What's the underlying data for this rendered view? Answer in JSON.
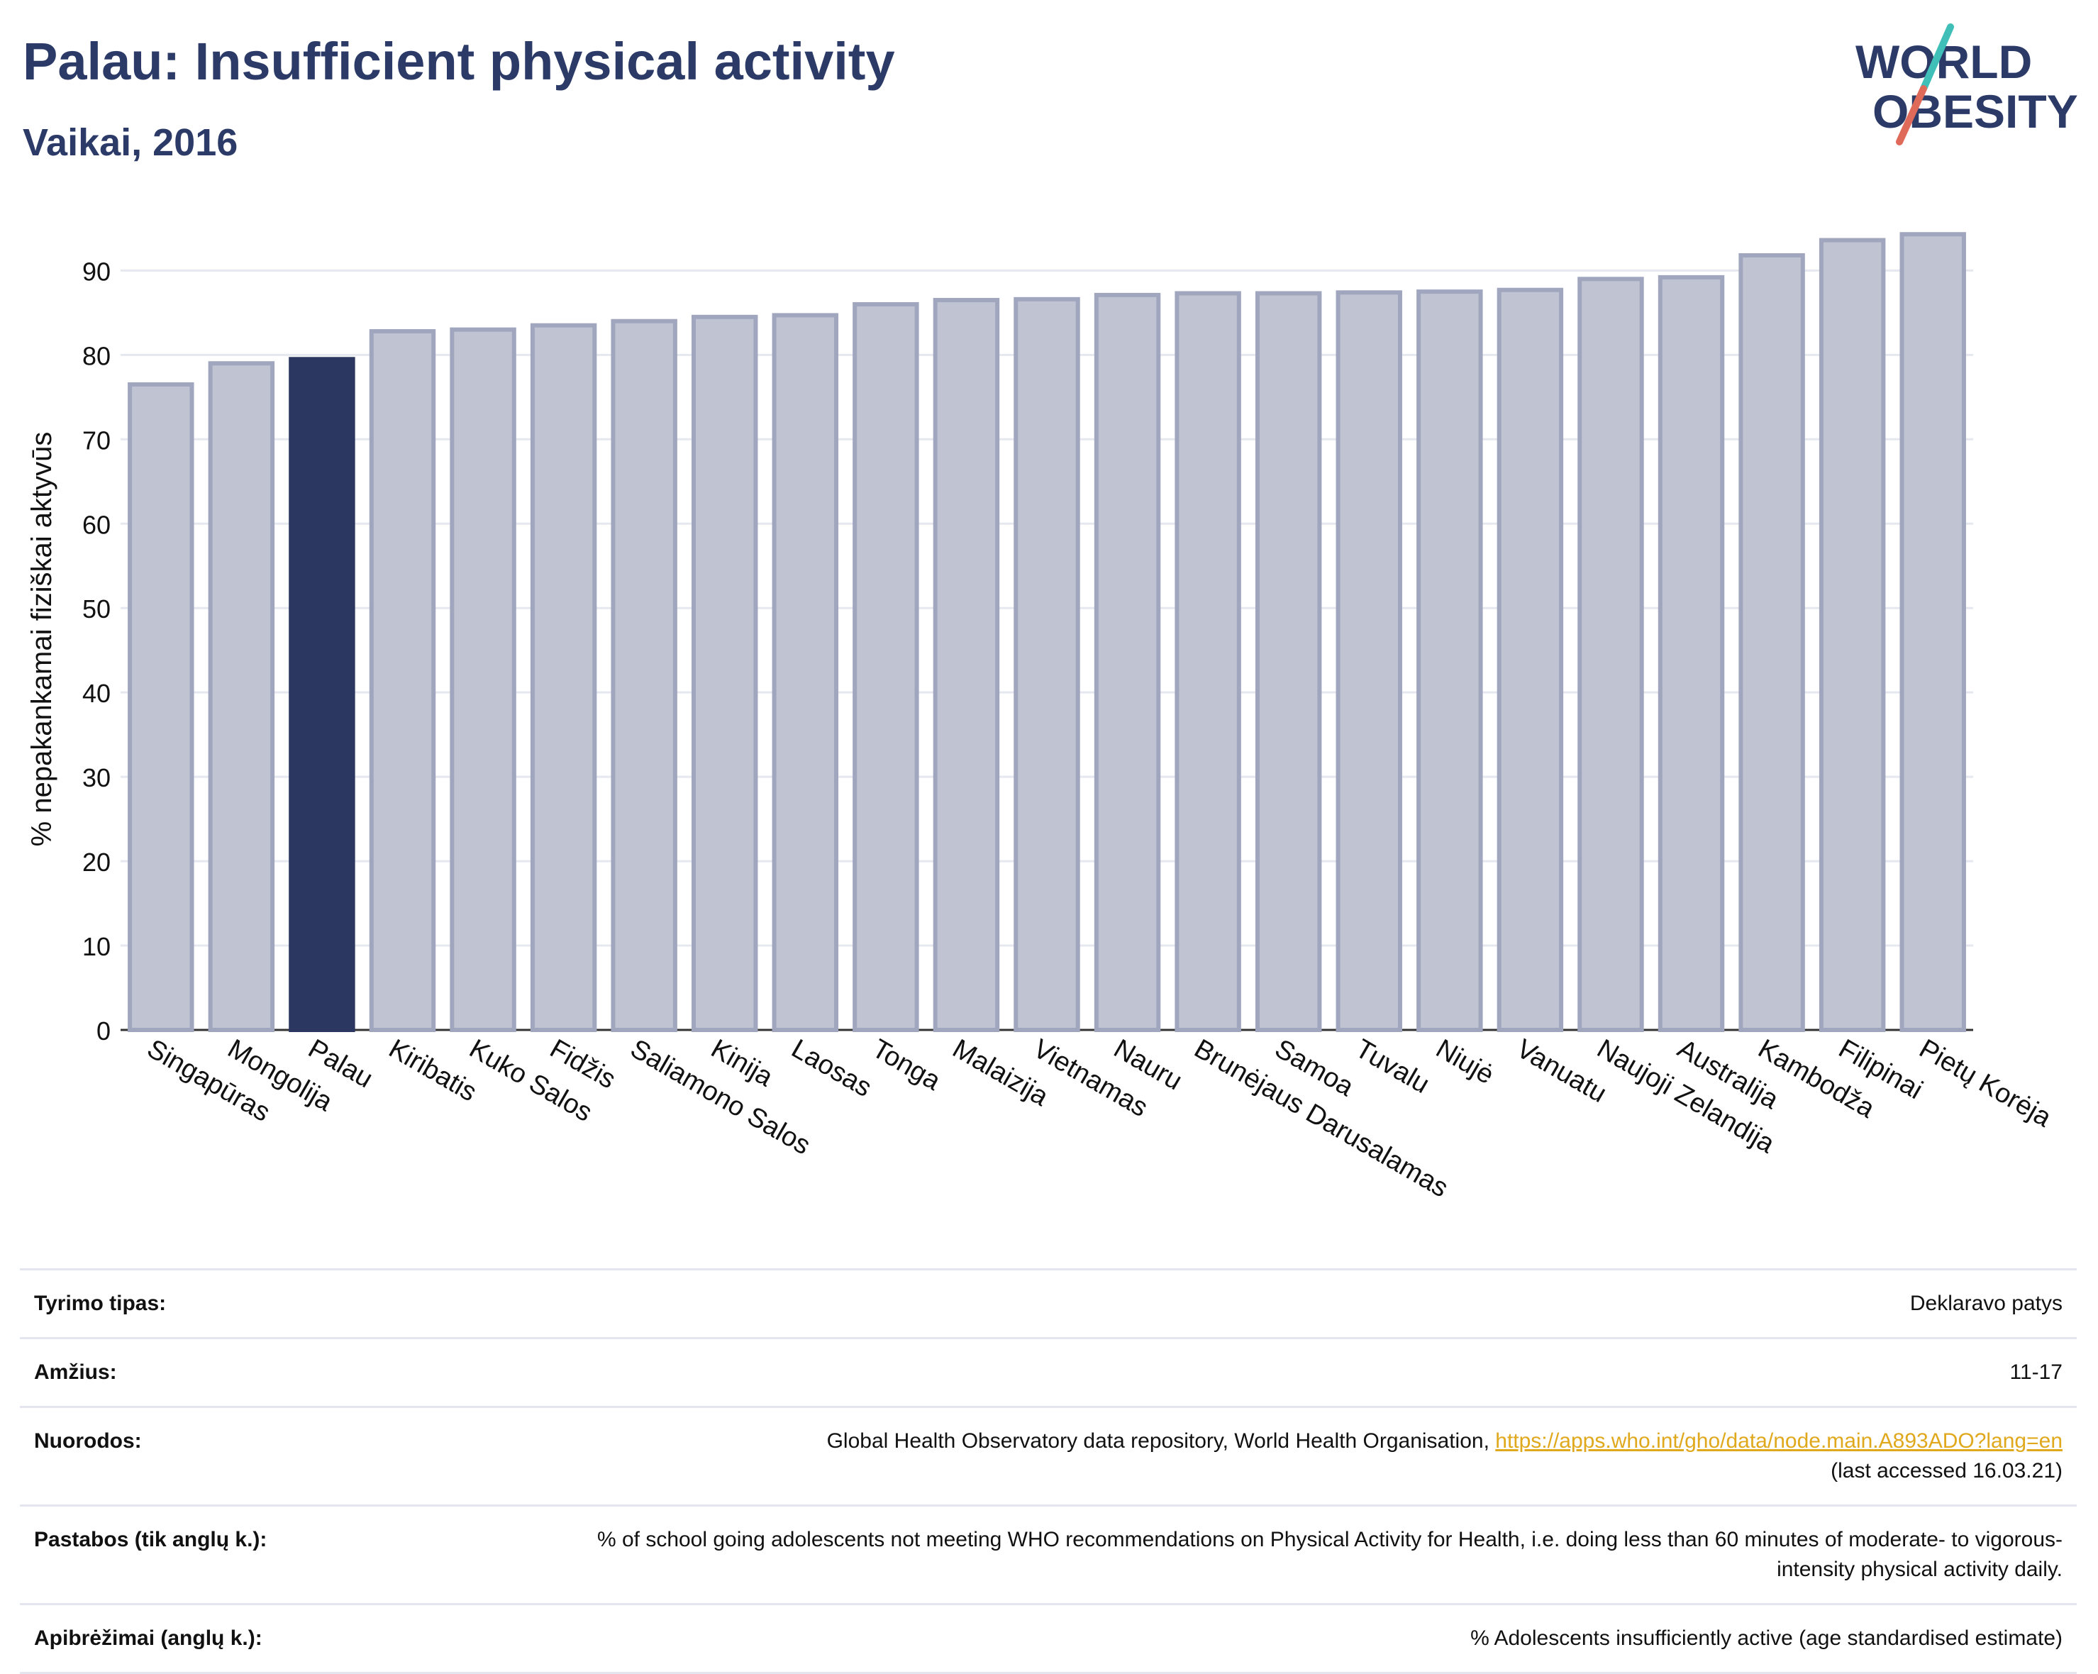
{
  "title": "Palau: Insufficient physical activity",
  "subtitle": "Vaikai, 2016",
  "logo": {
    "line1": "WORLD",
    "line2": "OBESITY"
  },
  "colors": {
    "title": "#2b3a67",
    "bar": "#bfc3d2",
    "bar_border": "#a0a6be",
    "highlight": "#2b3760",
    "grid": "#e5e8ef",
    "link": "#e0a81c",
    "logo_teal": "#3fbfb8",
    "logo_red": "#e06a5a"
  },
  "chart_data": {
    "type": "bar",
    "categories": [
      "Singapūras",
      "Mongolija",
      "Palau",
      "Kiribatis",
      "Kuko Salos",
      "Fidžis",
      "Saliamono Salos",
      "Kinija",
      "Laosas",
      "Tonga",
      "Malaizija",
      "Vietnamas",
      "Nauru",
      "Brunėjaus Darusalamas",
      "Samoa",
      "Tuvalu",
      "Niujė",
      "Vanuatu",
      "Naujoji Zelandija",
      "Australija",
      "Kambodža",
      "Filipinai",
      "Pietų Korėja"
    ],
    "values": [
      76.5,
      79,
      79.5,
      82.8,
      83,
      83.5,
      84,
      84.5,
      84.7,
      86,
      86.5,
      86.6,
      87.1,
      87.3,
      87.3,
      87.4,
      87.5,
      87.7,
      89,
      89.2,
      91.8,
      93.6,
      94.3
    ],
    "highlight": "Palau",
    "ylabel": "% nepakankamai fiziškai aktyvūs",
    "xlabel": "",
    "ylim": [
      0,
      96
    ],
    "yticks": [
      0,
      10,
      20,
      30,
      40,
      50,
      60,
      70,
      80,
      90
    ],
    "grid": true
  },
  "info": [
    {
      "label": "Tyrimo tipas:",
      "value": "Deklaravo patys"
    },
    {
      "label": "Amžius:",
      "value": "11-17"
    },
    {
      "label": "Nuorodos:",
      "value": "Global Health Observatory data repository, World Health Organisation, ",
      "link": "https://apps.who.int/gho/data/node.main.A893ADO?lang=en",
      "value2": "(last accessed 16.03.21)"
    },
    {
      "label": "Pastabos (tik anglų k.):",
      "value": "% of school going adolescents not meeting WHO recommendations on Physical Activity for Health, i.e. doing less than 60 minutes of moderate- to vigorous-intensity physical activity daily."
    },
    {
      "label": "Apibrėžimai (anglų k.):",
      "value": "% Adolescents insufficiently active (age standardised estimate)"
    }
  ]
}
